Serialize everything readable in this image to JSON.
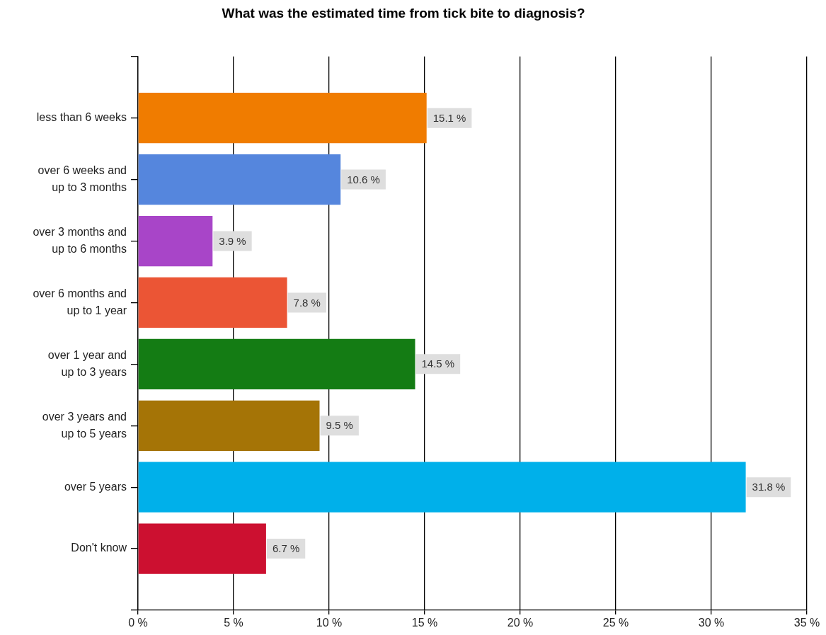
{
  "chart_data": {
    "type": "bar",
    "orientation": "horizontal",
    "title": "What was the estimated time from tick bite to diagnosis?",
    "categories": [
      "less than 6 weeks",
      "over 6 weeks and\nup to 3 months",
      "over 3 months and\nup to 6 months",
      "over 6 months and\nup to 1 year",
      "over 1 year and\nup to 3 years",
      "over 3 years and\nup to 5 years",
      "over 5 years",
      "Don't know"
    ],
    "values": [
      15.1,
      10.6,
      3.9,
      7.8,
      14.5,
      9.5,
      31.8,
      6.7
    ],
    "value_labels": [
      "15.1 %",
      "10.6 %",
      "3.9 %",
      "7.8 %",
      "14.5 %",
      "9.5 %",
      "31.8 %",
      "6.7 %"
    ],
    "colors": [
      "#f07c00",
      "#5586dd",
      "#a845c8",
      "#eb5535",
      "#147c14",
      "#a57406",
      "#00b0ea",
      "#cc1030"
    ],
    "xlim": [
      0,
      35
    ],
    "xticks": [
      {
        "value": 0,
        "label": "0 %"
      },
      {
        "value": 5,
        "label": "5 %"
      },
      {
        "value": 10,
        "label": "10 %"
      },
      {
        "value": 15,
        "label": "15 %"
      },
      {
        "value": 20,
        "label": "20 %"
      },
      {
        "value": 25,
        "label": "25 %"
      },
      {
        "value": 30,
        "label": "30 %"
      },
      {
        "value": 35,
        "label": "35 %"
      }
    ],
    "grid": "x"
  }
}
